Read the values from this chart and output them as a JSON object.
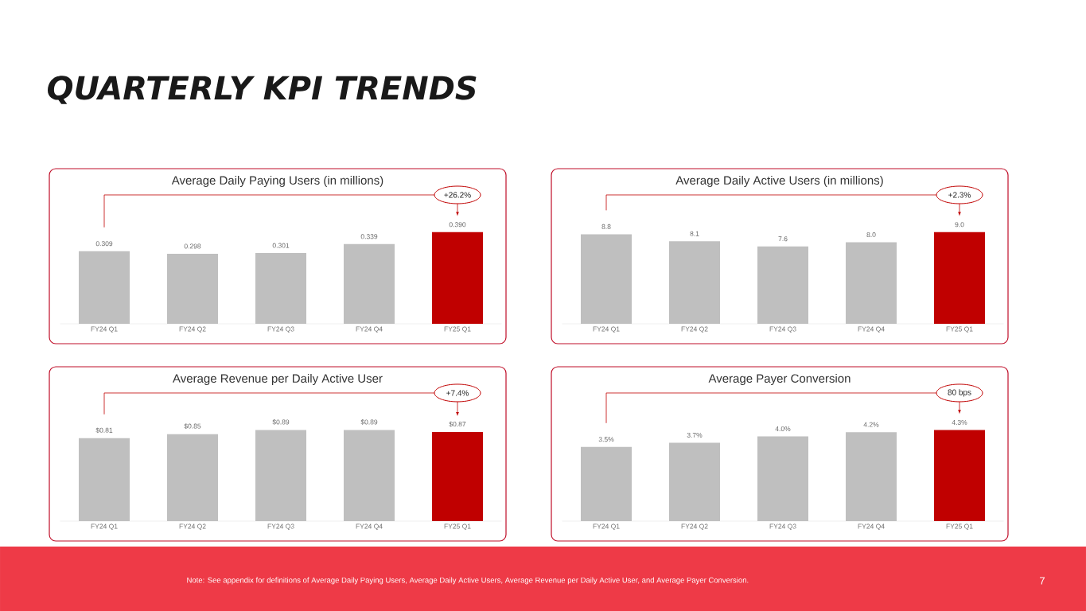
{
  "chart_data": [
    {
      "type": "bar",
      "title": "Average Daily Paying Users (in millions)",
      "categories": [
        "FY24 Q1",
        "FY24 Q2",
        "FY24 Q3",
        "FY24 Q4",
        "FY25 Q1"
      ],
      "values": [
        0.309,
        0.298,
        0.301,
        0.339,
        0.39
      ],
      "value_labels": [
        "0.309",
        "0.298",
        "0.301",
        "0.339",
        "0.390"
      ],
      "colors": [
        "#bfbfbf",
        "#bfbfbf",
        "#bfbfbf",
        "#bfbfbf",
        "#c00000"
      ],
      "annotations": [
        "+26.2%"
      ]
    },
    {
      "type": "bar",
      "title": "Average Daily Active Users (in millions)",
      "categories": [
        "FY24 Q1",
        "FY24 Q2",
        "FY24 Q3",
        "FY24 Q4",
        "FY25 Q1"
      ],
      "values": [
        8.8,
        8.1,
        7.6,
        8.0,
        9.0
      ],
      "value_labels": [
        "8.8",
        "8.1",
        "7.6",
        "8.0",
        "9.0"
      ],
      "colors": [
        "#bfbfbf",
        "#bfbfbf",
        "#bfbfbf",
        "#bfbfbf",
        "#c00000"
      ],
      "annotations": [
        "+2.3%"
      ]
    },
    {
      "type": "bar",
      "title": "Average Revenue per Daily Active User",
      "categories": [
        "FY24 Q1",
        "FY24 Q2",
        "FY24 Q3",
        "FY24 Q4",
        "FY25 Q1"
      ],
      "values": [
        0.81,
        0.85,
        0.89,
        0.89,
        0.87
      ],
      "value_labels": [
        "$0.81",
        "$0.85",
        "$0.89",
        "$0.89",
        "$0.87"
      ],
      "colors": [
        "#bfbfbf",
        "#bfbfbf",
        "#bfbfbf",
        "#bfbfbf",
        "#c00000"
      ],
      "annotations": [
        "+7.4%"
      ]
    },
    {
      "type": "bar",
      "title": "Average Payer Conversion",
      "categories": [
        "FY24 Q1",
        "FY24 Q2",
        "FY24 Q3",
        "FY24 Q4",
        "FY25 Q1"
      ],
      "values": [
        3.5,
        3.7,
        4.0,
        4.2,
        4.3
      ],
      "value_labels": [
        "3.5%",
        "3.7%",
        "4.0%",
        "4.2%",
        "4.3%"
      ],
      "colors": [
        "#bfbfbf",
        "#bfbfbf",
        "#bfbfbf",
        "#bfbfbf",
        "#c00000"
      ],
      "annotations": [
        "80 bps"
      ]
    },
    {
      "type": "other",
      "title": "QUARTERLY KPI TRENDS",
      "annotations": [
        "Note:  See appendix for definitions of Average Daily Paying Users, Average Daily Active Users, Average Revenue per Daily Active User, and Average Payer Conversion.",
        "7"
      ]
    }
  ]
}
